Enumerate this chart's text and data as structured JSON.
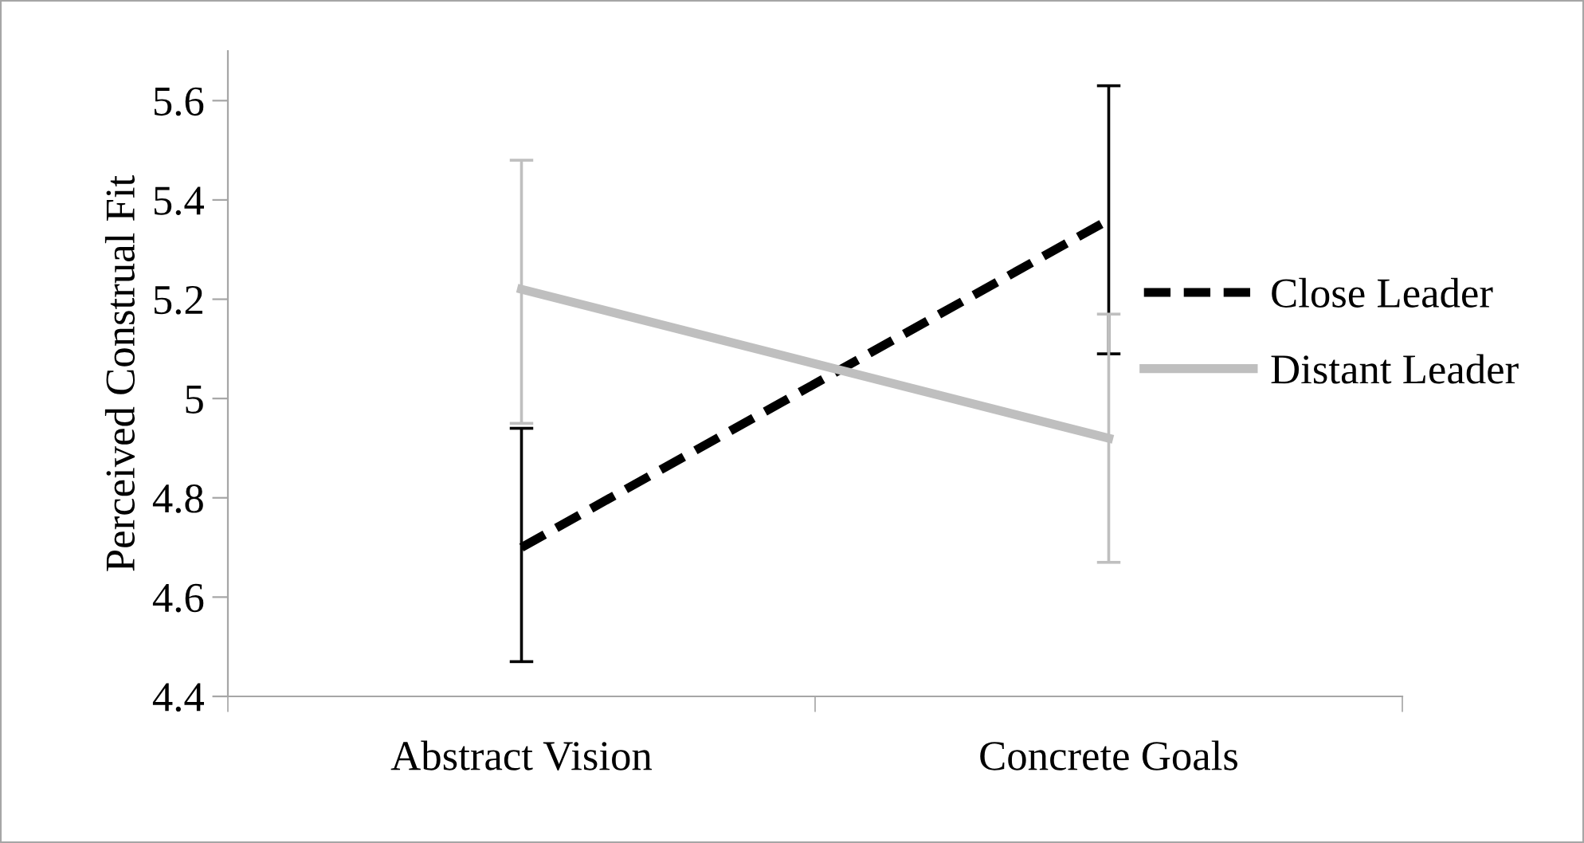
{
  "chart_data": {
    "type": "line",
    "ylabel": "Perceived Construal Fit",
    "categories": [
      "Abstract Vision",
      "Concrete Goals"
    ],
    "series": [
      {
        "name": "Close Leader",
        "color": "#000000",
        "line_style": "dashed",
        "values": [
          4.7,
          5.36
        ],
        "errors": [
          [
            4.47,
            4.94
          ],
          [
            5.09,
            5.63
          ]
        ]
      },
      {
        "name": "Distant Leader",
        "color": "#bfbfbf",
        "line_style": "solid",
        "values": [
          5.22,
          4.92
        ],
        "errors": [
          [
            4.95,
            5.48
          ],
          [
            4.67,
            5.17
          ]
        ]
      }
    ],
    "ylim": [
      4.4,
      5.7
    ],
    "yticks": [
      4.4,
      4.6,
      4.8,
      5,
      5.2,
      5.4,
      5.6
    ],
    "grid": false,
    "legend": "right",
    "marker": "none"
  }
}
